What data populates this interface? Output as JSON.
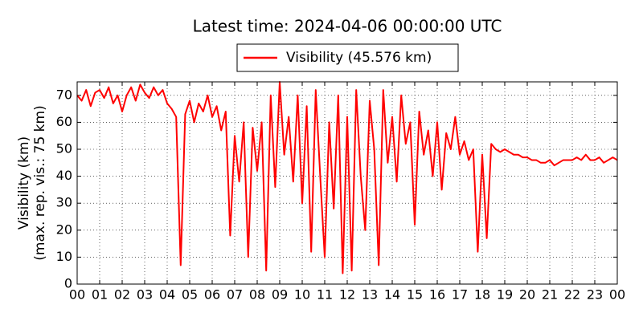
{
  "chart_data": {
    "type": "line",
    "title": "Latest time: 2024-04-06 00:00:00 UTC",
    "ylabel": [
      "Visibility (km)",
      "(max. rep. vis.: 75 km)"
    ],
    "x": [
      0,
      0.2,
      0.4,
      0.6,
      0.8,
      1,
      1.2,
      1.4,
      1.6,
      1.8,
      2,
      2.2,
      2.4,
      2.6,
      2.8,
      3,
      3.2,
      3.4,
      3.6,
      3.8,
      4,
      4.2,
      4.4,
      4.6,
      4.8,
      5,
      5.2,
      5.4,
      5.6,
      5.8,
      6,
      6.2,
      6.4,
      6.6,
      6.8,
      7,
      7.2,
      7.4,
      7.6,
      7.8,
      8,
      8.2,
      8.4,
      8.6,
      8.8,
      9,
      9.2,
      9.4,
      9.6,
      9.8,
      10,
      10.2,
      10.4,
      10.6,
      10.8,
      11,
      11.2,
      11.4,
      11.6,
      11.8,
      12,
      12.2,
      12.4,
      12.6,
      12.8,
      13,
      13.2,
      13.4,
      13.6,
      13.8,
      14,
      14.2,
      14.4,
      14.6,
      14.8,
      15,
      15.2,
      15.4,
      15.6,
      15.8,
      16,
      16.2,
      16.4,
      16.6,
      16.8,
      17,
      17.2,
      17.4,
      17.6,
      17.8,
      18,
      18.2,
      18.4,
      18.6,
      18.8,
      19,
      19.2,
      19.4,
      19.6,
      19.8,
      20,
      20.2,
      20.4,
      20.6,
      20.8,
      21,
      21.2,
      21.4,
      21.6,
      21.8,
      22,
      22.2,
      22.4,
      22.6,
      22.8,
      23,
      23.2,
      23.4,
      23.6,
      23.8,
      24
    ],
    "series": [
      {
        "name": "Visibility (45.576 km)",
        "color": "#ff0000",
        "values": [
          70,
          68,
          72,
          66,
          71,
          72,
          69,
          73,
          67,
          70,
          64,
          70,
          73,
          68,
          74,
          71,
          69,
          73,
          70,
          72,
          67,
          65,
          62,
          7,
          63,
          68,
          60,
          67,
          64,
          70,
          62,
          66,
          57,
          64,
          18,
          55,
          38,
          60,
          10,
          58,
          42,
          60,
          5,
          70,
          36,
          75,
          48,
          62,
          38,
          70,
          30,
          66,
          12,
          72,
          40,
          10,
          60,
          28,
          70,
          4,
          62,
          5,
          72,
          40,
          20,
          68,
          50,
          7,
          72,
          45,
          62,
          38,
          70,
          52,
          60,
          22,
          64,
          48,
          57,
          40,
          60,
          35,
          56,
          50,
          62,
          48,
          53,
          46,
          50,
          12,
          48,
          17,
          52,
          50,
          49,
          50,
          49,
          48,
          48,
          47,
          47,
          46,
          46,
          45,
          45,
          46,
          44,
          45,
          46,
          46,
          46,
          47,
          46,
          48,
          46,
          46,
          47,
          45,
          46,
          47,
          46
        ]
      }
    ],
    "xlim": [
      0,
      24
    ],
    "ylim": [
      0,
      75
    ],
    "xticks": [
      {
        "value": 0,
        "label": "00"
      },
      {
        "value": 1,
        "label": "01"
      },
      {
        "value": 2,
        "label": "02"
      },
      {
        "value": 3,
        "label": "03"
      },
      {
        "value": 4,
        "label": "04"
      },
      {
        "value": 5,
        "label": "05"
      },
      {
        "value": 6,
        "label": "06"
      },
      {
        "value": 7,
        "label": "07"
      },
      {
        "value": 8,
        "label": "08"
      },
      {
        "value": 9,
        "label": "09"
      },
      {
        "value": 10,
        "label": "10"
      },
      {
        "value": 11,
        "label": "11"
      },
      {
        "value": 12,
        "label": "12"
      },
      {
        "value": 13,
        "label": "13"
      },
      {
        "value": 14,
        "label": "14"
      },
      {
        "value": 15,
        "label": "15"
      },
      {
        "value": 16,
        "label": "16"
      },
      {
        "value": 17,
        "label": "17"
      },
      {
        "value": 18,
        "label": "18"
      },
      {
        "value": 19,
        "label": "19"
      },
      {
        "value": 20,
        "label": "20"
      },
      {
        "value": 21,
        "label": "21"
      },
      {
        "value": 22,
        "label": "22"
      },
      {
        "value": 23,
        "label": "23"
      },
      {
        "value": 24,
        "label": "00"
      }
    ],
    "yticks": [
      0,
      10,
      20,
      30,
      40,
      50,
      60,
      70
    ],
    "grid": true,
    "legend": "top"
  }
}
